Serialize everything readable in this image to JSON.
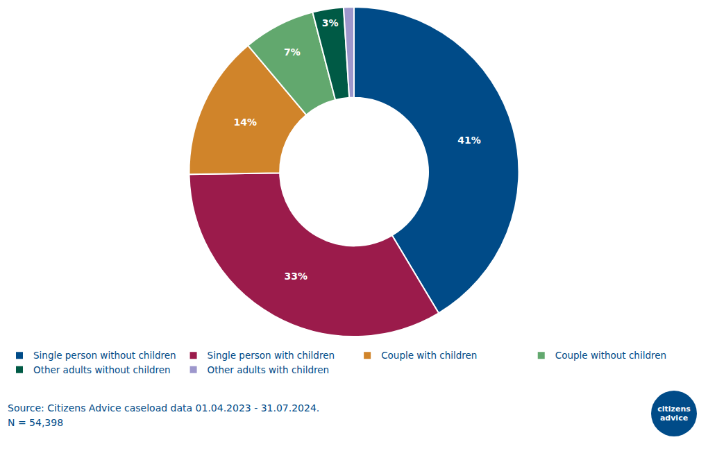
{
  "chart_data": {
    "type": "pie",
    "categories": [
      "Single person without children",
      "Single person with children",
      "Couple with children",
      "Couple without children",
      "Other adults without children",
      "Other adults with children"
    ],
    "values": [
      41,
      33,
      14,
      7,
      3,
      1
    ],
    "value_labels": [
      "41%",
      "33%",
      "14%",
      "7%",
      "3%",
      null
    ],
    "colors": [
      "#004b88",
      "#9b1b4b",
      "#d0842a",
      "#62a86e",
      "#005a45",
      "#9d97cc"
    ],
    "data_labels": true,
    "legend": "bottom left"
  },
  "source": "Source: Citizens Advice caseload data 01.04.2023 - 31.07.2024.",
  "note": "N = 54,398",
  "logo": [
    "citizens",
    "advice"
  ]
}
